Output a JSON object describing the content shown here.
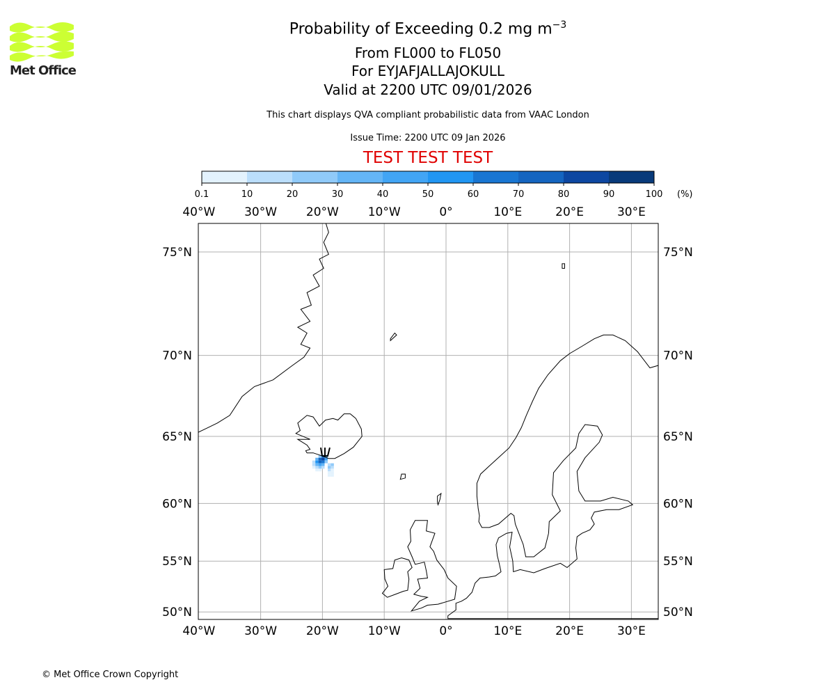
{
  "header": {
    "title": "Probability of Exceeding 0.2 mg m",
    "title_superscript": "−3",
    "level_range": "From FL000 to FL050",
    "volcano": "For EYJAFJALLAJOKULL",
    "valid_time": "Valid at 2200 UTC 09/01/2026",
    "subtitle": "This chart displays QVA compliant probabilistic data from VAAC London",
    "issue_time": "Issue Time: 2200 UTC 09 Jan 2026",
    "test_banner": "TEST TEST TEST",
    "test_color": "#e00000"
  },
  "logo": {
    "text": "Met Office",
    "color": "#ccff33"
  },
  "footer": {
    "copyright": "© Met Office Crown Copyright"
  },
  "colorbar": {
    "ticks": [
      "0.1",
      "10",
      "20",
      "30",
      "40",
      "50",
      "60",
      "70",
      "80",
      "90",
      "100"
    ],
    "unit": "(%)",
    "colors": [
      "#e3f2fd",
      "#bbdefb",
      "#90caf9",
      "#64b5f6",
      "#42a5f5",
      "#2196f3",
      "#1976d2",
      "#1565c0",
      "#0d47a1",
      "#083a7a"
    ]
  },
  "chart_data": {
    "type": "heatmap",
    "projection": "mercator",
    "lon_range": [
      -40.2,
      34
    ],
    "lat_range": [
      49.6,
      76.3
    ],
    "grid": true,
    "x_ticks": [
      "40°W",
      "30°W",
      "20°W",
      "10°W",
      "0°",
      "10°E",
      "20°E",
      "30°E"
    ],
    "x_tick_values": [
      -40,
      -30,
      -20,
      -10,
      0,
      10,
      20,
      30
    ],
    "y_ticks": [
      "75°N",
      "70°N",
      "65°N",
      "60°N",
      "55°N",
      "50°N"
    ],
    "y_tick_values": [
      75,
      70,
      65,
      60,
      55,
      50
    ],
    "volcano": {
      "name": "EYJAFJALLAJOKULL",
      "lon": -19.6,
      "lat": 63.63
    },
    "cells": [
      {
        "lon": -20.4,
        "lat": 63.6,
        "p": 20
      },
      {
        "lon": -19.9,
        "lat": 63.6,
        "p": 60
      },
      {
        "lon": -19.4,
        "lat": 63.6,
        "p": 30
      },
      {
        "lon": -20.9,
        "lat": 63.4,
        "p": 30
      },
      {
        "lon": -20.4,
        "lat": 63.4,
        "p": 70
      },
      {
        "lon": -19.9,
        "lat": 63.4,
        "p": 85
      },
      {
        "lon": -19.4,
        "lat": 63.4,
        "p": 40
      },
      {
        "lon": -21.4,
        "lat": 63.2,
        "p": 15
      },
      {
        "lon": -20.9,
        "lat": 63.2,
        "p": 55
      },
      {
        "lon": -20.4,
        "lat": 63.2,
        "p": 75
      },
      {
        "lon": -19.9,
        "lat": 63.2,
        "p": 60
      },
      {
        "lon": -19.4,
        "lat": 63.2,
        "p": 25
      },
      {
        "lon": -21.4,
        "lat": 63.0,
        "p": 10
      },
      {
        "lon": -20.9,
        "lat": 63.0,
        "p": 35
      },
      {
        "lon": -20.4,
        "lat": 63.0,
        "p": 45
      },
      {
        "lon": -19.9,
        "lat": 63.0,
        "p": 30
      },
      {
        "lon": -18.9,
        "lat": 63.0,
        "p": 15
      },
      {
        "lon": -18.4,
        "lat": 63.0,
        "p": 25
      },
      {
        "lon": -21.4,
        "lat": 62.8,
        "p": 5
      },
      {
        "lon": -20.9,
        "lat": 62.8,
        "p": 15
      },
      {
        "lon": -20.4,
        "lat": 62.8,
        "p": 20
      },
      {
        "lon": -19.9,
        "lat": 62.8,
        "p": 10
      },
      {
        "lon": -18.9,
        "lat": 62.8,
        "p": 20
      },
      {
        "lon": -18.4,
        "lat": 62.8,
        "p": 15
      },
      {
        "lon": -20.9,
        "lat": 62.6,
        "p": 5
      },
      {
        "lon": -20.4,
        "lat": 62.6,
        "p": 5
      },
      {
        "lon": -18.9,
        "lat": 62.6,
        "p": 10
      },
      {
        "lon": -18.4,
        "lat": 62.6,
        "p": 5
      },
      {
        "lon": -18.9,
        "lat": 62.4,
        "p": 5
      },
      {
        "lon": -18.4,
        "lat": 62.4,
        "p": 5
      },
      {
        "lon": -18.9,
        "lat": 62.2,
        "p": 5
      },
      {
        "lon": -18.4,
        "lat": 62.2,
        "p": 5
      }
    ]
  }
}
